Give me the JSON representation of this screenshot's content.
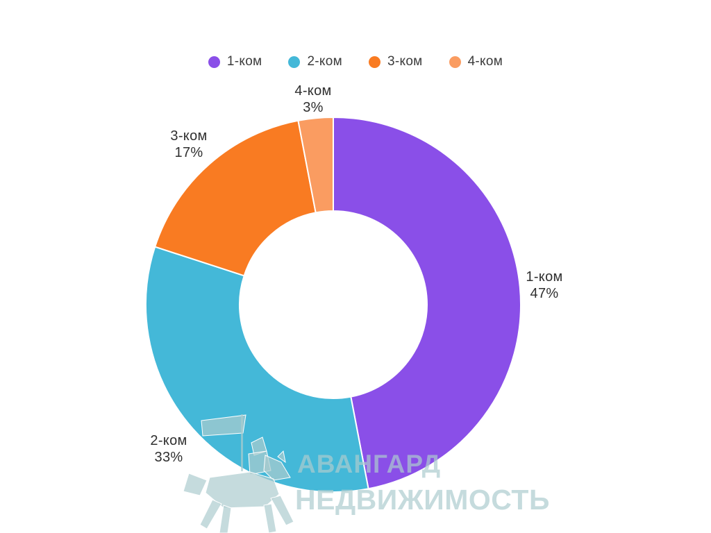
{
  "chart_data": {
    "type": "pie",
    "subtype": "donut",
    "title": "",
    "categories": [
      "1-ком",
      "2-ком",
      "3-ком",
      "4-ком"
    ],
    "values": [
      47,
      33,
      17,
      3
    ],
    "unit": "%",
    "colors": [
      "#8A4FE8",
      "#44B8D8",
      "#F97B22",
      "#FA9C61"
    ],
    "start_angle_deg": 0,
    "direction": "clockwise",
    "inner_radius_ratio": 0.5,
    "slice_gap_color": "#ffffff",
    "legend_position": "top",
    "labels": "outside, name over percent"
  },
  "legend": {
    "items": [
      {
        "label": "1-ком",
        "color": "#8A4FE8"
      },
      {
        "label": "2-ком",
        "color": "#44B8D8"
      },
      {
        "label": "3-ком",
        "color": "#F97B22"
      },
      {
        "label": "4-ком",
        "color": "#FA9C61"
      }
    ]
  },
  "callouts": [
    {
      "title": "1-ком",
      "value": "47%"
    },
    {
      "title": "2-ком",
      "value": "33%"
    },
    {
      "title": "3-ком",
      "value": "17%"
    },
    {
      "title": "4-ком",
      "value": "3%"
    }
  ],
  "watermark": {
    "line1": "АВАНГАРД",
    "line2": "НЕДВИЖИМОСТЬ",
    "logo": "knight-on-horse",
    "color": "#ADCCCF"
  }
}
